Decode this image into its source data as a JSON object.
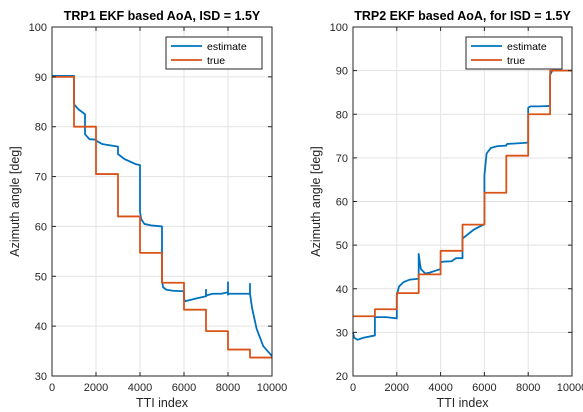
{
  "chart_data": [
    {
      "type": "line",
      "title": "TRP1 EKF based AoA, ISD = 1.5Y",
      "xlabel": "TTI index",
      "ylabel": "Azimuth angle [deg]",
      "xlim": [
        0,
        10000
      ],
      "ylim": [
        30,
        100
      ],
      "xticks": [
        0,
        2000,
        4000,
        6000,
        8000,
        10000
      ],
      "yticks": [
        30,
        40,
        50,
        60,
        70,
        80,
        90,
        100
      ],
      "grid": true,
      "legend": "top-right",
      "series": [
        {
          "name": "estimate",
          "color": "#0072BD",
          "x": [
            0,
            1000,
            1000,
            1200,
            1500,
            1500,
            1700,
            2000,
            2000,
            2300,
            3000,
            3000,
            3300,
            3800,
            4000,
            4000,
            4050,
            4200,
            4500,
            5000,
            5000,
            5050,
            5200,
            5500,
            6000,
            6000,
            6050,
            6500,
            7000,
            7000,
            7000,
            7050,
            7300,
            7700,
            8000,
            8000,
            8000,
            8050,
            8300,
            8700,
            9000,
            9000,
            9000,
            9100,
            9300,
            9600,
            10000
          ],
          "y": [
            90.2,
            90.2,
            84.5,
            83.5,
            82.5,
            78.5,
            77.5,
            77.4,
            77.2,
            76.5,
            76,
            74.5,
            73.5,
            72.5,
            72.3,
            63,
            61.5,
            60.5,
            60.2,
            60,
            49,
            47.8,
            47.3,
            47.1,
            47,
            45.5,
            45,
            45.5,
            46,
            47.3,
            46,
            46.2,
            46.5,
            46.5,
            46.8,
            48.8,
            46.3,
            46.5,
            46.5,
            46.5,
            46.5,
            48.5,
            46.5,
            43.5,
            39.5,
            36,
            34
          ]
        },
        {
          "name": "true",
          "color": "#D95319",
          "x": [
            0,
            1000,
            1000,
            2000,
            2000,
            3000,
            3000,
            4000,
            4000,
            5000,
            5000,
            6000,
            6000,
            7000,
            7000,
            8000,
            8000,
            9000,
            9000,
            10000
          ],
          "y": [
            90,
            90,
            80,
            80,
            70.5,
            70.5,
            62,
            62,
            54.7,
            54.7,
            48.7,
            48.7,
            43.3,
            43.3,
            39,
            39,
            35.3,
            35.3,
            33.7,
            33.7
          ]
        }
      ]
    },
    {
      "type": "line",
      "title": "TRP2 EKF based AoA, for ISD = 1.5Y",
      "xlabel": "TTI index",
      "ylabel": "Azimuth  angle [deg]",
      "xlim": [
        0,
        10000
      ],
      "ylim": [
        20,
        100
      ],
      "xticks": [
        0,
        2000,
        4000,
        6000,
        8000,
        10000
      ],
      "yticks": [
        20,
        30,
        40,
        50,
        60,
        70,
        80,
        90,
        100
      ],
      "grid": true,
      "legend": "top-right",
      "series": [
        {
          "name": "estimate",
          "color": "#0072BD",
          "x": [
            0,
            50,
            200,
            500,
            1000,
            1000,
            1050,
            1500,
            2000,
            2000,
            2100,
            2300,
            2600,
            3000,
            3000,
            3050,
            3100,
            3300,
            3500,
            3800,
            4000,
            4000,
            4100,
            4500,
            4700,
            5000,
            5000,
            5500,
            6000,
            6000,
            6100,
            6300,
            6600,
            7000,
            7000,
            7050,
            7400,
            8000,
            8000,
            8100,
            8500,
            9000,
            9000,
            9100,
            9500,
            10000
          ],
          "y": [
            30,
            28.8,
            28.3,
            28.8,
            29.3,
            33.5,
            33.5,
            33.5,
            33.2,
            38.5,
            40.5,
            41.5,
            42.1,
            42.3,
            48,
            46,
            44.5,
            43.5,
            43.7,
            44.2,
            44.5,
            46,
            46.2,
            46.3,
            47,
            47,
            51.5,
            53.5,
            54.8,
            66,
            71,
            72.3,
            72.7,
            72.8,
            73,
            73.2,
            73.3,
            73.5,
            81.5,
            81.8,
            81.8,
            81.9,
            89,
            90,
            90,
            90
          ]
        },
        {
          "name": "true",
          "color": "#D95319",
          "x": [
            0,
            1000,
            1000,
            2000,
            2000,
            3000,
            3000,
            4000,
            4000,
            5000,
            5000,
            6000,
            6000,
            7000,
            7000,
            8000,
            8000,
            9000,
            9000,
            10000
          ],
          "y": [
            33.7,
            33.7,
            35.3,
            35.3,
            39,
            39,
            43.3,
            43.3,
            48.7,
            48.7,
            54.7,
            54.7,
            62,
            62,
            70.5,
            70.5,
            80,
            80,
            90,
            90
          ]
        }
      ]
    }
  ]
}
